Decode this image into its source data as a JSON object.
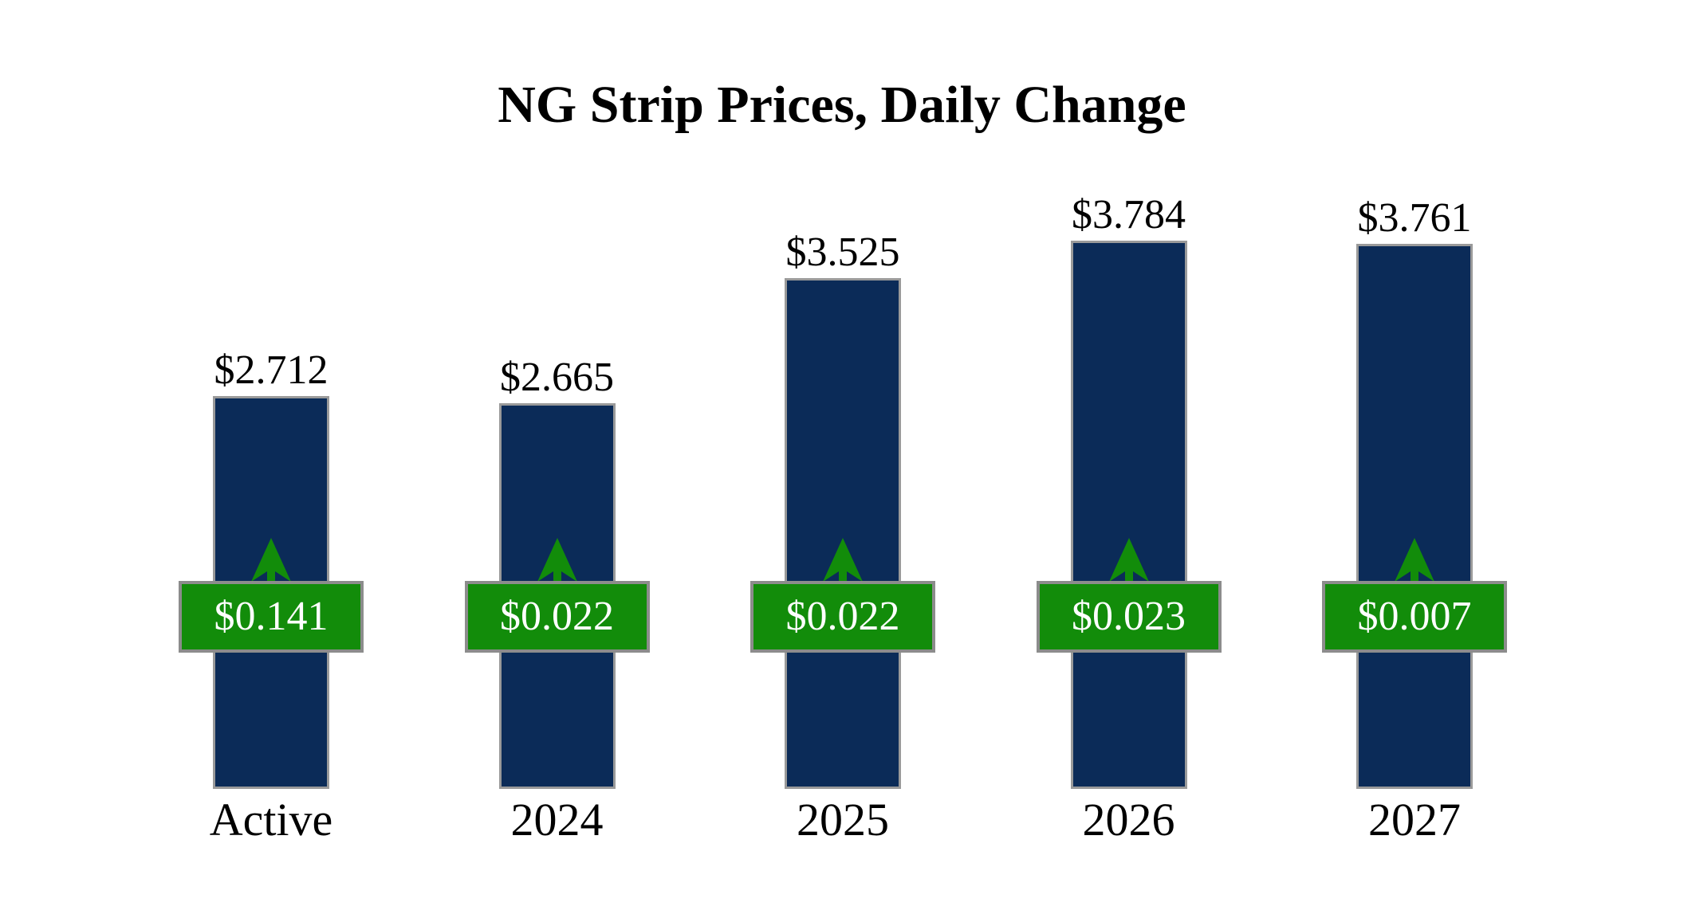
{
  "title": "NG Strip Prices, Daily Change",
  "chart_data": {
    "type": "bar",
    "title": "NG Strip Prices, Daily Change",
    "categories": [
      "Active",
      "2024",
      "2025",
      "2026",
      "2027"
    ],
    "series": [
      {
        "name": "Strip Price",
        "values": [
          2.712,
          2.665,
          3.525,
          3.784,
          3.761
        ],
        "labels": [
          "$2.712",
          "$2.665",
          "$3.525",
          "$3.784",
          "$3.761"
        ]
      },
      {
        "name": "Daily Change",
        "values": [
          0.141,
          0.022,
          0.022,
          0.023,
          0.007
        ],
        "labels": [
          "$0.141",
          "$0.022",
          "$0.022",
          "$0.023",
          "$0.007"
        ]
      }
    ],
    "change_direction": "up",
    "ylim": [
      0,
      3.784
    ],
    "grid": false,
    "axes_visible": false,
    "legend": "none",
    "colors": {
      "bar": "#0b2b58",
      "bar_border": "#9a9a9a",
      "change_box": "#128c0a",
      "change_box_border": "#8c8c8c",
      "change_text": "#ffffff",
      "label_text": "#000000",
      "background": "#ffffff"
    }
  }
}
